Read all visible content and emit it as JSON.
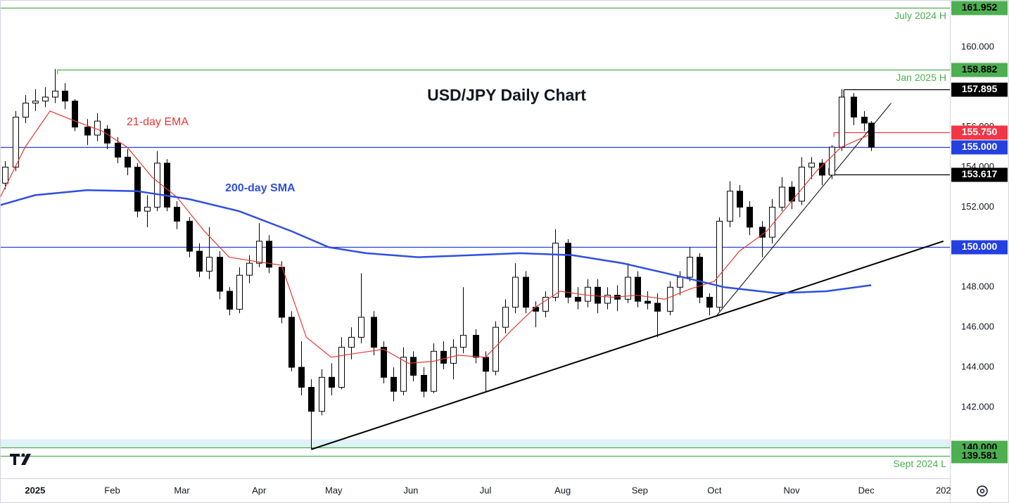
{
  "chart_data": {
    "type": "candlestick",
    "title": "USD/JPY Daily Chart",
    "xlim": [
      -14.1,
      367.6
    ],
    "xticks": [
      {
        "value": 0,
        "label": "2025"
      },
      {
        "value": 31,
        "label": "Feb"
      },
      {
        "value": 59,
        "label": "Mar"
      },
      {
        "value": 90,
        "label": "Apr"
      },
      {
        "value": 120,
        "label": "May"
      },
      {
        "value": 151,
        "label": "Jun"
      },
      {
        "value": 181,
        "label": "Jul"
      },
      {
        "value": 212,
        "label": "Aug"
      },
      {
        "value": 243,
        "label": "Sep"
      },
      {
        "value": 273,
        "label": "Oct"
      },
      {
        "value": 304,
        "label": "Nov"
      },
      {
        "value": 334,
        "label": "Dec"
      },
      {
        "value": 365,
        "label": "202"
      }
    ],
    "ylim": [
      138.45,
      162.35
    ],
    "yticks": [
      {
        "value": 142,
        "label": "142.000"
      },
      {
        "value": 144,
        "label": "144.000"
      },
      {
        "value": 146,
        "label": "146.000"
      },
      {
        "value": 148,
        "label": "148.000"
      },
      {
        "value": 152,
        "label": "152.000"
      },
      {
        "value": 154,
        "label": "154.000"
      },
      {
        "value": 156,
        "label": "156.000"
      },
      {
        "value": 160,
        "label": "160.000"
      }
    ],
    "up_color": "#ffffff",
    "down_color": "#000000",
    "candles": {
      "x": [
        -12,
        -8,
        -4,
        0,
        4,
        8,
        12,
        16,
        21,
        25,
        29,
        33,
        37,
        41,
        45,
        49,
        53,
        57,
        62,
        66,
        70,
        74,
        78,
        82,
        86,
        90,
        94,
        99,
        103,
        107,
        111,
        115,
        119,
        123,
        127,
        131,
        136,
        140,
        144,
        148,
        152,
        156,
        160,
        164,
        168,
        172,
        177,
        181,
        185,
        189,
        193,
        197,
        201,
        205,
        209,
        214,
        218,
        222,
        226,
        230,
        234,
        238,
        242,
        246,
        250,
        255,
        259,
        263,
        267,
        271,
        275,
        279,
        283,
        287,
        292,
        296,
        300,
        304,
        308,
        312,
        316,
        320,
        324,
        329,
        333,
        336
      ],
      "open": [
        153.2,
        154.0,
        156.5,
        157.2,
        157.3,
        157.5,
        157.8,
        157.3,
        156.0,
        155.6,
        155.9,
        155.2,
        154.5,
        154.0,
        151.8,
        152.0,
        154.2,
        152.0,
        151.3,
        149.8,
        148.8,
        149.5,
        147.8,
        146.9,
        148.6,
        149.2,
        150.3,
        149.0,
        146.5,
        144.0,
        143.0,
        141.8,
        143.5,
        143.0,
        145.0,
        145.5,
        146.5,
        145.0,
        143.5,
        142.8,
        144.5,
        143.6,
        142.8,
        144.8,
        144.2,
        145.0,
        145.6,
        144.5,
        143.8,
        146.0,
        147.0,
        148.5,
        147.0,
        146.8,
        147.5,
        150.2,
        147.5,
        147.3,
        148.0,
        147.2,
        147.6,
        147.4,
        148.5,
        147.3,
        147.2,
        146.8,
        148.0,
        148.5,
        149.5,
        147.5,
        147.0,
        151.3,
        152.8,
        152.0,
        151.0,
        150.5,
        152.0,
        153.0,
        152.3,
        154.0,
        154.2,
        153.6,
        155.0,
        157.5,
        156.5,
        156.2
      ],
      "high": [
        154.3,
        156.8,
        157.6,
        157.9,
        158.0,
        158.9,
        158.2,
        157.4,
        156.4,
        156.7,
        156.1,
        155.5,
        154.9,
        154.2,
        152.6,
        154.8,
        154.4,
        152.3,
        151.5,
        150.2,
        151.0,
        149.8,
        148.0,
        149.0,
        149.6,
        151.2,
        150.6,
        149.3,
        146.8,
        145.3,
        143.4,
        143.9,
        144.2,
        145.5,
        146.0,
        148.7,
        146.8,
        145.3,
        144.0,
        145.0,
        144.8,
        144.0,
        145.2,
        145.3,
        145.4,
        148.0,
        145.9,
        144.8,
        146.3,
        147.4,
        149.2,
        148.8,
        147.3,
        147.8,
        150.9,
        150.4,
        148.0,
        148.4,
        148.4,
        148.0,
        148.1,
        149.2,
        148.8,
        147.8,
        147.7,
        148.3,
        148.8,
        150.0,
        149.7,
        147.7,
        151.5,
        153.3,
        153.1,
        152.3,
        151.3,
        152.4,
        153.5,
        153.3,
        154.5,
        154.5,
        154.4,
        155.1,
        157.9,
        157.7,
        156.8,
        156.3
      ],
      "low": [
        152.9,
        153.8,
        156.2,
        156.8,
        157.0,
        157.2,
        156.9,
        155.8,
        155.1,
        155.3,
        154.9,
        154.2,
        153.6,
        151.5,
        151.0,
        151.8,
        151.8,
        150.9,
        149.5,
        148.5,
        148.4,
        147.4,
        146.6,
        146.7,
        148.2,
        149.0,
        148.7,
        146.2,
        143.8,
        142.6,
        139.9,
        141.6,
        142.6,
        142.9,
        144.4,
        145.2,
        144.6,
        143.2,
        142.3,
        142.6,
        143.3,
        142.5,
        142.7,
        143.9,
        143.4,
        144.7,
        144.2,
        142.8,
        143.6,
        145.7,
        146.7,
        146.7,
        146.0,
        146.5,
        147.3,
        147.2,
        146.9,
        147.0,
        146.7,
        146.9,
        146.8,
        147.2,
        147.0,
        146.9,
        145.5,
        146.6,
        147.6,
        148.3,
        147.2,
        146.6,
        146.8,
        151.0,
        151.5,
        150.6,
        149.5,
        150.2,
        151.8,
        151.9,
        152.1,
        153.4,
        153.1,
        153.4,
        154.8,
        156.1,
        155.8,
        154.8
      ],
      "close": [
        154.0,
        156.5,
        157.2,
        157.3,
        157.5,
        157.8,
        157.3,
        156.0,
        155.6,
        156.3,
        155.2,
        154.5,
        154.0,
        151.8,
        152.0,
        154.2,
        152.0,
        151.3,
        149.8,
        148.8,
        149.5,
        147.8,
        146.9,
        148.6,
        149.2,
        150.3,
        149.0,
        146.5,
        144.0,
        143.0,
        141.8,
        143.5,
        143.0,
        145.0,
        145.5,
        146.5,
        145.0,
        143.5,
        142.8,
        144.5,
        143.6,
        142.8,
        144.8,
        144.2,
        145.0,
        145.6,
        144.5,
        143.8,
        146.0,
        147.0,
        148.5,
        147.0,
        146.8,
        147.5,
        150.2,
        147.5,
        147.3,
        148.0,
        147.2,
        147.6,
        147.4,
        148.5,
        147.3,
        147.2,
        146.8,
        148.0,
        148.5,
        149.5,
        147.5,
        147.0,
        151.3,
        152.8,
        152.0,
        151.0,
        150.5,
        152.0,
        153.0,
        152.3,
        154.0,
        154.2,
        153.6,
        155.0,
        157.5,
        156.5,
        156.2,
        155.0
      ]
    },
    "series": [
      {
        "name": "21-day EMA",
        "color": "#e53935",
        "width": 1.2,
        "x": [
          -14,
          -4,
          6,
          16,
          27,
          37,
          47,
          57,
          68,
          78,
          88,
          99,
          109,
          119,
          129,
          140,
          150,
          160,
          170,
          181,
          191,
          201,
          211,
          222,
          232,
          242,
          253,
          263,
          273,
          283,
          294,
          304,
          314,
          324,
          335
        ],
        "values": [
          152.5,
          155.0,
          156.8,
          156.3,
          155.8,
          155.0,
          153.5,
          152.5,
          150.8,
          149.5,
          149.3,
          149.1,
          145.5,
          144.5,
          144.7,
          144.9,
          144.2,
          144.3,
          144.6,
          144.5,
          145.8,
          147.0,
          147.8,
          147.6,
          147.5,
          147.6,
          147.4,
          147.9,
          148.3,
          149.8,
          150.8,
          152.3,
          153.8,
          155.0,
          155.6
        ]
      },
      {
        "name": "200-day SMA",
        "color": "#2f4fe0",
        "width": 2.5,
        "x": [
          -14,
          0,
          21,
          41,
          62,
          82,
          103,
          118,
          133,
          154,
          175,
          195,
          216,
          236,
          257,
          277,
          298,
          318,
          336
        ],
        "values": [
          152.1,
          152.6,
          152.85,
          152.8,
          152.4,
          151.8,
          150.8,
          150.0,
          149.7,
          149.5,
          149.6,
          149.7,
          149.6,
          149.2,
          148.6,
          148.0,
          147.7,
          147.8,
          148.1
        ]
      }
    ],
    "band": {
      "ylim": [
        140.0,
        140.4
      ],
      "color": "#dff1f7"
    },
    "levels": [
      {
        "value": 161.952,
        "label": "161.952",
        "color": "#4caf50",
        "label_color": "#000000",
        "note": "July 2024 H"
      },
      {
        "value": 158.882,
        "label": "158.882",
        "color": "#4caf50",
        "label_color": "#000000",
        "from": 9,
        "note": "Jan 2025 H"
      },
      {
        "value": 157.895,
        "label": "157.895",
        "color": "#000000",
        "label_color": "#ffffff",
        "from": 325
      },
      {
        "value": 155.75,
        "label": "155.750",
        "color": "#f23645",
        "label_color": "#ffffff",
        "from": 321
      },
      {
        "value": 155.0,
        "label": "155.000",
        "color": "#2440e0",
        "label_color": "#ffffff"
      },
      {
        "value": 153.617,
        "label": "153.617",
        "color": "#000000",
        "label_color": "#ffffff",
        "from": 319
      },
      {
        "value": 150.0,
        "label": "150.000",
        "color": "#2440e0",
        "label_color": "#ffffff"
      },
      {
        "value": 140.0,
        "label": "140.000",
        "color": "#4caf50",
        "label_color": "#000000"
      },
      {
        "value": 139.581,
        "label": "139.581",
        "color": "#4caf50",
        "label_color": "#000000",
        "note": "Sept 2024 L"
      }
    ],
    "trendlines": [
      {
        "x": [
          111,
          365
        ],
        "y": [
          139.9,
          150.3
        ],
        "color": "#000000",
        "width": 2
      },
      {
        "x": [
          274,
          344
        ],
        "y": [
          146.6,
          157.2
        ],
        "color": "#000000",
        "width": 1
      }
    ]
  }
}
